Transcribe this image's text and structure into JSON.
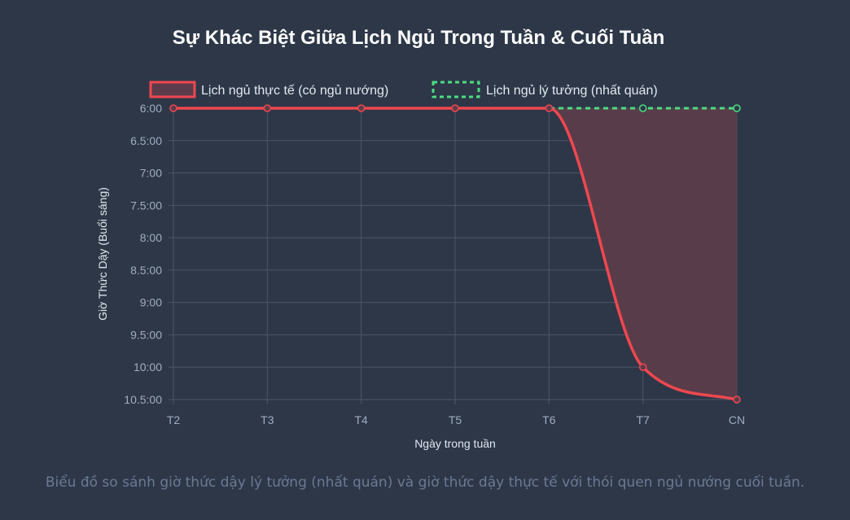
{
  "chart_data": {
    "type": "line",
    "title": "Sự Khác Biệt Giữa Lịch Ngủ Trong Tuần & Cuối Tuần",
    "xlabel": "Ngày trong tuần",
    "ylabel": "Giờ Thức Dậy (Buổi sáng)",
    "categories": [
      "T2",
      "T3",
      "T4",
      "T5",
      "T6",
      "T7",
      "CN"
    ],
    "yticks": [
      "6:00",
      "6.5:00",
      "7:00",
      "7.5:00",
      "8:00",
      "8.5:00",
      "9:00",
      "9.5:00",
      "10:00",
      "10.5:00"
    ],
    "ylim": [
      6,
      10.5
    ],
    "y_reversed": true,
    "grid": true,
    "legend_position": "top",
    "series": [
      {
        "name": "Lịch ngủ thực tế (có ngủ nướng)",
        "values": [
          6,
          6,
          6,
          6,
          6,
          10,
          10.5
        ],
        "color": "#f0474f",
        "fill_color": "#5c3c4a",
        "style": "solid"
      },
      {
        "name": "Lịch ngủ lý tưởng (nhất quán)",
        "values": [
          6,
          6,
          6,
          6,
          6,
          6,
          6
        ],
        "color": "#4ade80",
        "style": "dashed"
      }
    ]
  },
  "caption": "Biểu đồ so sánh giờ thức dậy lý tưởng (nhất quán) và giờ thức dậy thực tế với thói quen ngủ nướng cuối tuần."
}
